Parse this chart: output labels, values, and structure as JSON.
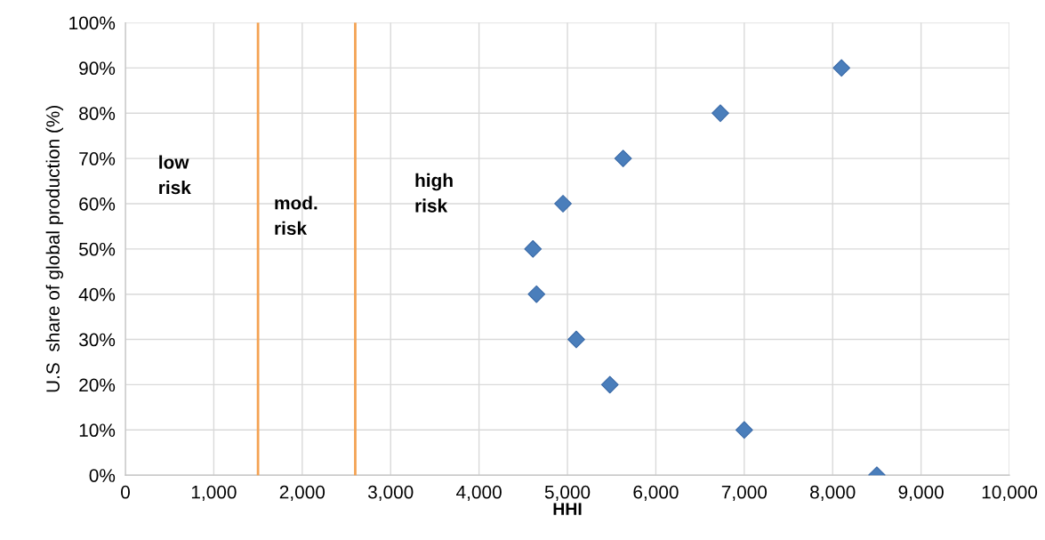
{
  "chart_data": {
    "type": "scatter",
    "xlabel": "HHI",
    "ylabel": "U.S  share of global production (%)",
    "x": [
      8500,
      7000,
      5480,
      5100,
      4650,
      4610,
      4950,
      5630,
      6730,
      8100
    ],
    "values": [
      0,
      10,
      20,
      30,
      40,
      50,
      60,
      70,
      80,
      90
    ],
    "color": "#4a7ebb",
    "marker": "diamond",
    "grid": true,
    "legend": false,
    "xlim": [
      0,
      10000
    ],
    "ylim": [
      0,
      100
    ],
    "xticks": [
      0,
      {
        "value": 1000,
        "label": "1,000"
      },
      {
        "value": 2000,
        "label": "2,000"
      },
      {
        "value": 3000,
        "label": "3,000"
      },
      {
        "value": 4000,
        "label": "4,000"
      },
      {
        "value": 5000,
        "label": "5,000"
      },
      {
        "value": 6000,
        "label": "6,000"
      },
      {
        "value": 7000,
        "label": "7,000"
      },
      {
        "value": 8000,
        "label": "8,000"
      },
      {
        "value": 9000,
        "label": "9,000"
      },
      {
        "value": 10000,
        "label": "10,000"
      }
    ],
    "yticks": [
      {
        "value": 0,
        "label": "0%"
      },
      {
        "value": 10,
        "label": "10%"
      },
      {
        "value": 20,
        "label": "20%"
      },
      {
        "value": 30,
        "label": "30%"
      },
      {
        "value": 40,
        "label": "40%"
      },
      {
        "value": 50,
        "label": "50%"
      },
      {
        "value": 60,
        "label": "60%"
      },
      {
        "value": 70,
        "label": "70%"
      },
      {
        "value": 80,
        "label": "80%"
      },
      {
        "value": 90,
        "label": "90%"
      },
      {
        "value": 100,
        "label": "100%"
      }
    ],
    "ref_lines": [
      {
        "axis": "x",
        "value": 1500,
        "color": "#f4a354"
      },
      {
        "axis": "x",
        "value": 2600,
        "color": "#f4a354"
      }
    ],
    "annotations": [
      "low\nrisk",
      "mod.\nrisk",
      "high\nrisk"
    ]
  }
}
